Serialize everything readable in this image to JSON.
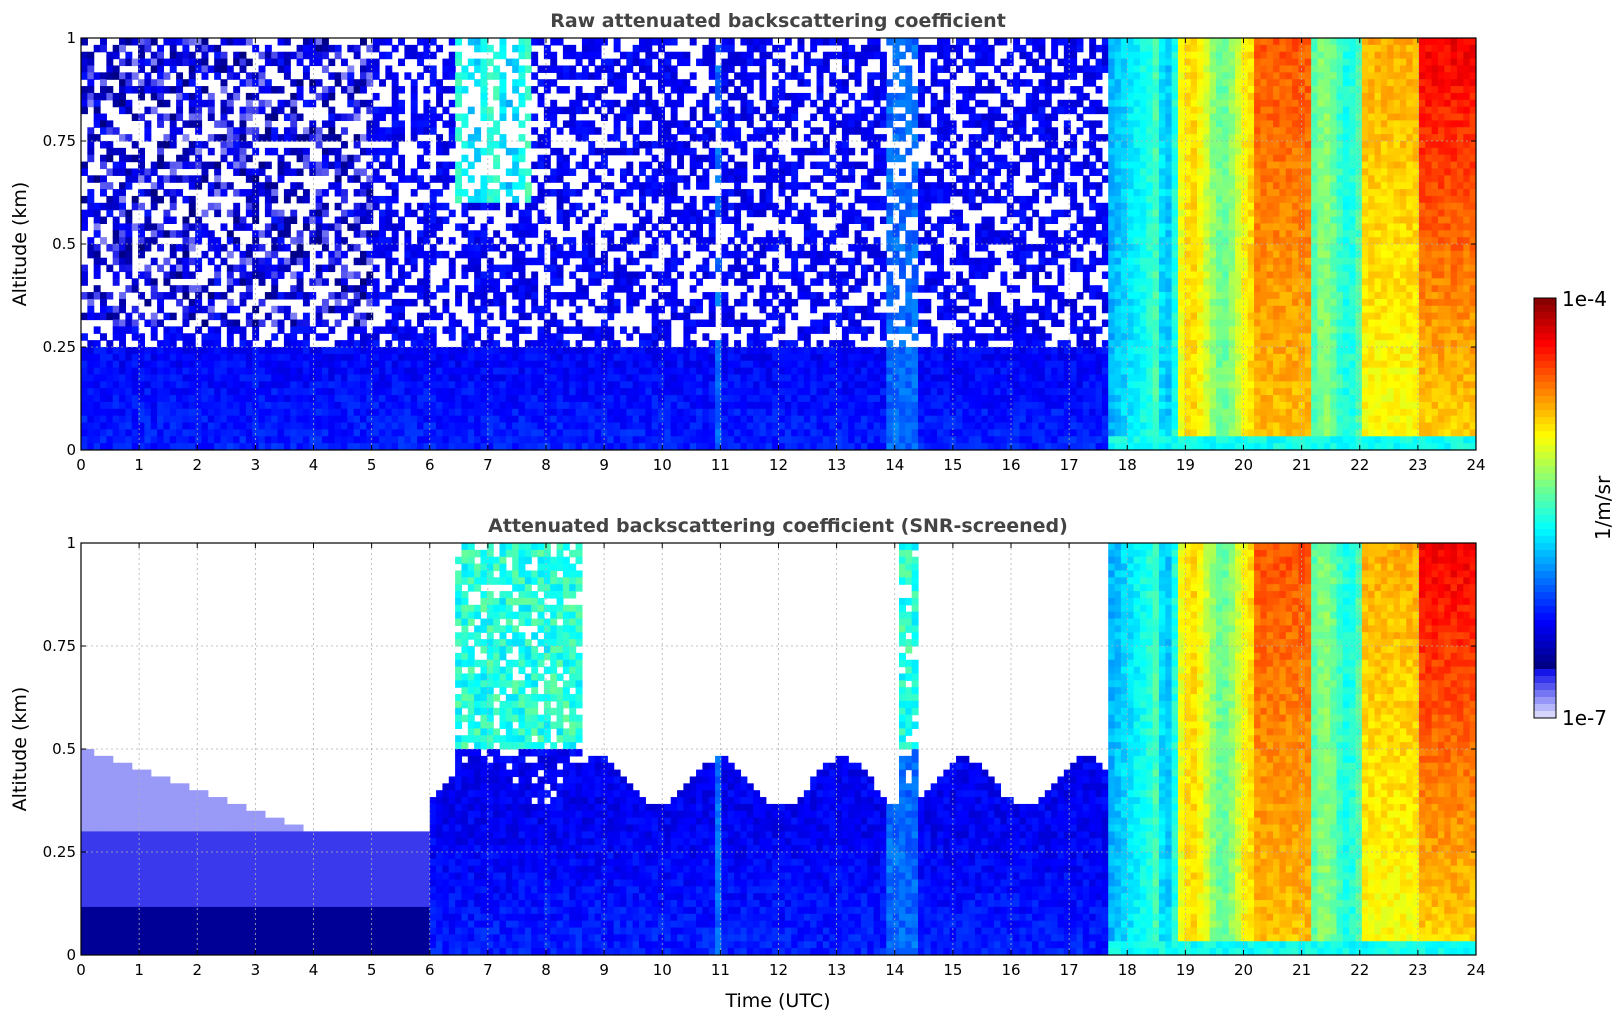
{
  "chart_data": [
    {
      "type": "heatmap",
      "title": "Raw attenuated backscattering coefficient",
      "xlabel": "",
      "ylabel": "Altitude (km)",
      "xlim": [
        0,
        24
      ],
      "ylim": [
        0,
        1
      ],
      "xticks": [
        "0",
        "1",
        "2",
        "3",
        "4",
        "5",
        "6",
        "7",
        "8",
        "9",
        "10",
        "11",
        "12",
        "13",
        "14",
        "15",
        "16",
        "17",
        "18",
        "19",
        "20",
        "21",
        "22",
        "23",
        "24"
      ],
      "yticks": [
        "0",
        "0.25",
        "0.5",
        "0.75",
        "1"
      ],
      "grid": true,
      "description_of_field": "time-altitude field of log10 backscatter; weak blue noise before 17.7 UTC, strong green-to-red aerosol signal from ~18 to 24 UTC with maxima near 20.5-21 and 23-24 UTC near the top",
      "time_segments_utc": [
        {
          "start": 0,
          "end": 6.4,
          "level": "low-noise"
        },
        {
          "start": 6.4,
          "end": 7.8,
          "level": "moderate-upper"
        },
        {
          "start": 7.8,
          "end": 17.7,
          "level": "low-noise"
        },
        {
          "start": 17.7,
          "end": 18.8,
          "level": "moderate"
        },
        {
          "start": 18.8,
          "end": 20.2,
          "level": "high"
        },
        {
          "start": 20.2,
          "end": 21.2,
          "level": "very-high"
        },
        {
          "start": 21.2,
          "end": 22.0,
          "level": "moderate"
        },
        {
          "start": 22.0,
          "end": 24.0,
          "level": "very-high-top"
        }
      ]
    },
    {
      "type": "heatmap",
      "title": "Attenuated backscattering coefficient (SNR-screened)",
      "xlabel": "Time (UTC)",
      "ylabel": "Altitude (km)",
      "xlim": [
        0,
        24
      ],
      "ylim": [
        0,
        1
      ],
      "xticks": [
        "0",
        "1",
        "2",
        "3",
        "4",
        "5",
        "6",
        "7",
        "8",
        "9",
        "10",
        "11",
        "12",
        "13",
        "14",
        "15",
        "16",
        "17",
        "18",
        "19",
        "20",
        "21",
        "22",
        "23",
        "24"
      ],
      "yticks": [
        "0",
        "0.25",
        "0.5",
        "0.75",
        "1"
      ],
      "grid": true,
      "description_of_field": "same field with low-SNR pixels removed; pale lavender boundary layer up to ~0.55 km before 4 UTC, blue layer up to ~0.4-0.5 km from 6 to 17.7 UTC with plumes reaching 1 km near 6.5-8.5 and 14.3 UTC, full column signal after 17.7 UTC"
    }
  ],
  "colorbar": {
    "label": "1/m/sr",
    "min_label": "1e-7",
    "max_label": "1e-4",
    "scale": "log",
    "colormap": "jet"
  }
}
